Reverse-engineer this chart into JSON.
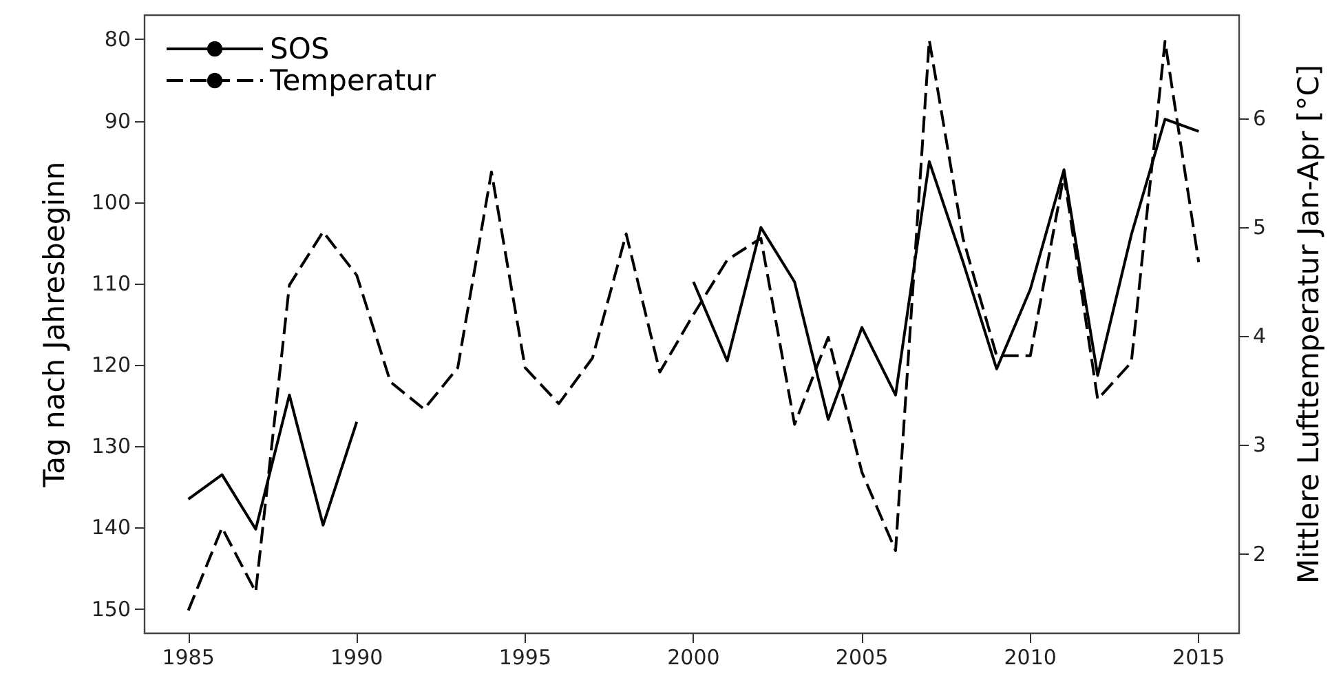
{
  "chart_data": {
    "type": "line",
    "ylabel": "Tag nach Jahresbeginn",
    "y2label": "Mittlere Lufttemperatur Jan-Apr [°C]",
    "x": [
      1985,
      1986,
      1987,
      1988,
      1989,
      1990,
      1991,
      1992,
      1993,
      1994,
      1995,
      1996,
      1997,
      1998,
      1999,
      2000,
      2001,
      2002,
      2003,
      2004,
      2005,
      2006,
      2007,
      2008,
      2009,
      2010,
      2011,
      2012,
      2013,
      2014,
      2015
    ],
    "series": [
      {
        "name": "SOS",
        "color": "#000000",
        "line_style": "solid",
        "values": [
          136.5,
          133.5,
          140.2,
          123.7,
          139.7,
          127,
          null,
          null,
          null,
          null,
          null,
          null,
          null,
          null,
          null,
          109.8,
          119.5,
          103.1,
          109.8,
          126.7,
          115.4,
          123.7,
          95,
          107.3,
          120.5,
          110.7,
          96,
          121.3,
          104,
          89.8,
          91.3
        ]
      },
      {
        "name": "Temperatur",
        "color": "#000000",
        "line_style": "dashed",
        "axis": "y2",
        "values": [
          1.48,
          2.24,
          1.65,
          4.47,
          4.96,
          4.56,
          3.58,
          3.33,
          3.71,
          5.51,
          3.71,
          3.38,
          3.8,
          4.94,
          3.67,
          4.2,
          4.7,
          4.9,
          3.19,
          3.99,
          2.75,
          2.03,
          6.72,
          4.9,
          3.82,
          3.82,
          5.48,
          3.42,
          3.76,
          6.71,
          4.68
        ]
      }
    ],
    "xlim": [
      1983.7,
      2016.2
    ],
    "xticks": [
      1985,
      1990,
      1995,
      2000,
      2005,
      2010,
      2015
    ],
    "ylim": [
      153,
      77
    ],
    "yticks": [
      80,
      90,
      100,
      110,
      120,
      130,
      140,
      150
    ],
    "y2lim": [
      1.27,
      6.95
    ],
    "y2ticks": [
      2,
      3,
      4,
      5,
      6
    ],
    "grid": false,
    "legend": "top left",
    "marker": "none"
  }
}
